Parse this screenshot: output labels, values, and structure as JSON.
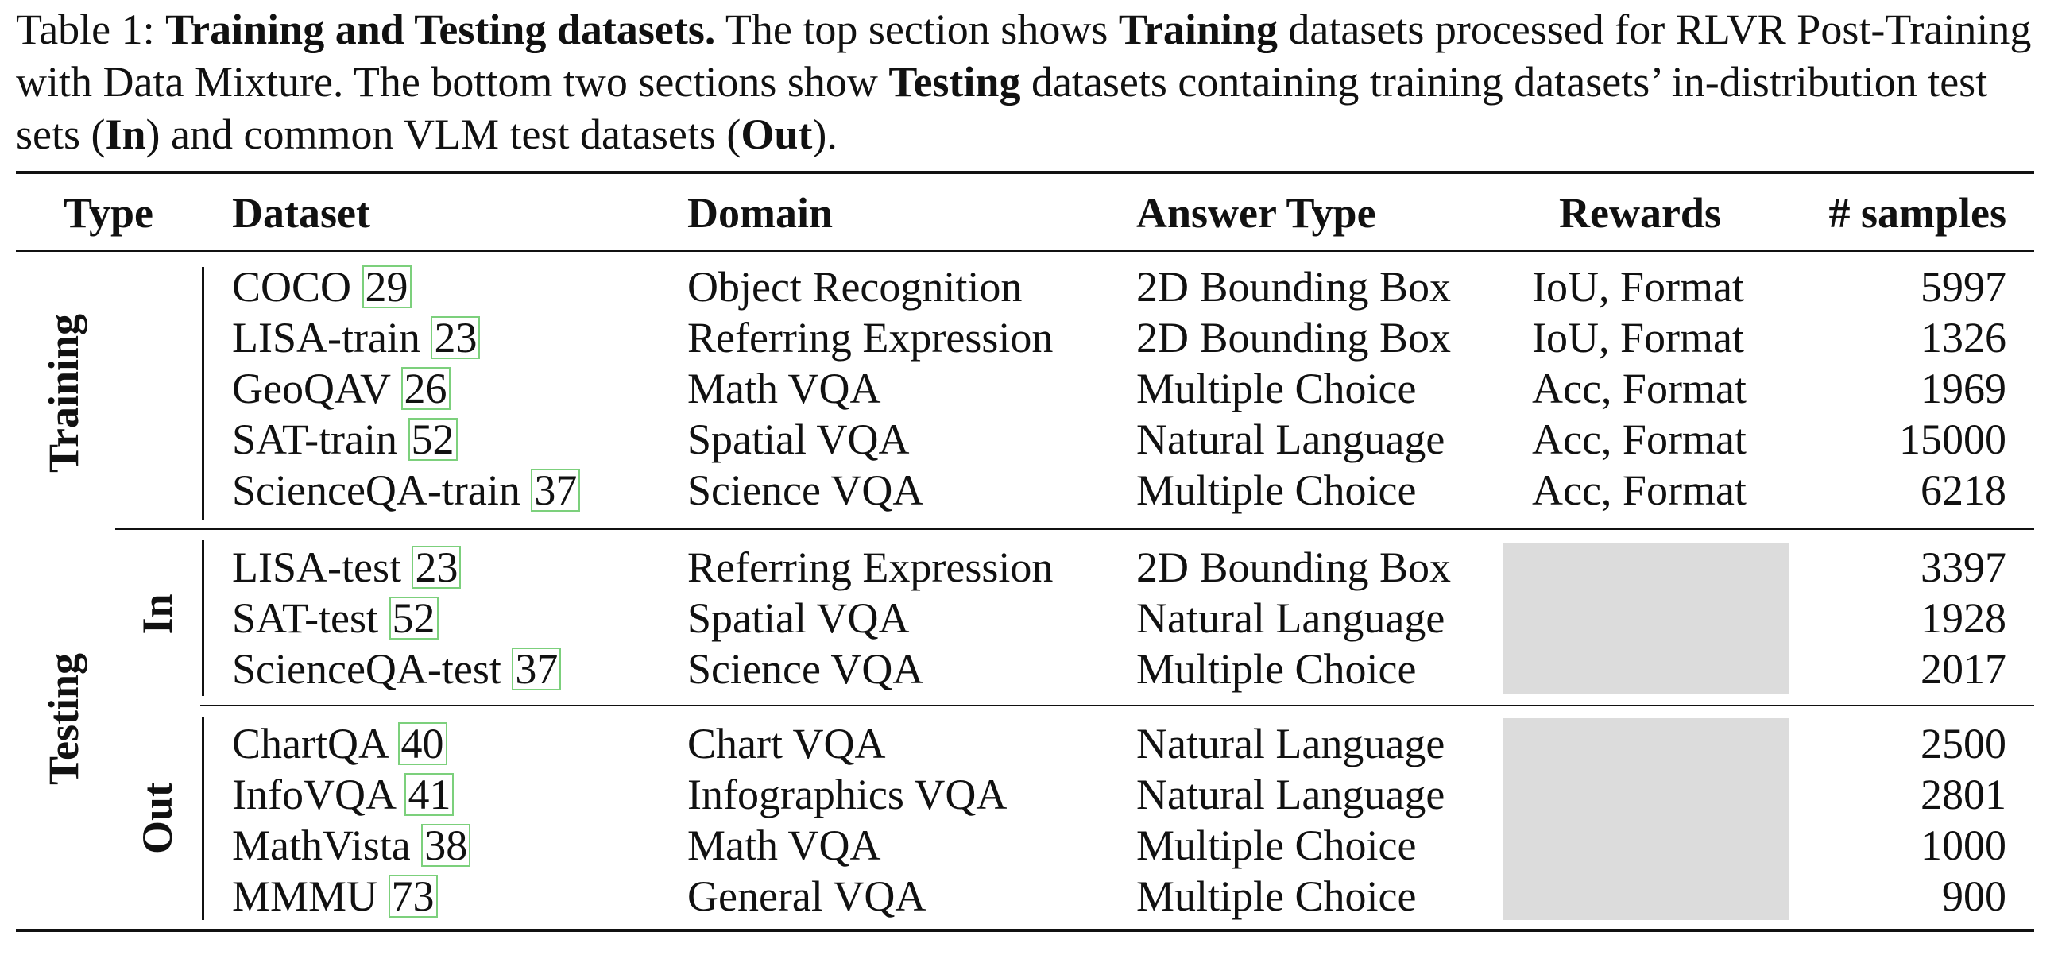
{
  "caption": {
    "label": "Table 1:",
    "title": "Training and Testing datasets.",
    "t1": "The top section shows",
    "b1": "Training",
    "t2": "datasets processed for RLVR Post-Training with Data Mixture. The bottom two sections show",
    "b2": "Testing",
    "t3": "datasets containing training datasets’ in-distribution test sets (",
    "b3": "In",
    "t4": ") and common VLM test datasets (",
    "b4": "Out",
    "t5": ")."
  },
  "headers": {
    "type": "Type",
    "dataset": "Dataset",
    "domain": "Domain",
    "answer_type": "Answer Type",
    "rewards": "Rewards",
    "samples": "# samples"
  },
  "groups": {
    "training": "Training",
    "testing": "Testing",
    "in": "In",
    "out": "Out"
  },
  "rows": [
    {
      "dataset": "COCO",
      "ref": "29",
      "domain": "Object Recognition",
      "answer": "2D Bounding Box",
      "rewards": "IoU, Format",
      "samples": "5997"
    },
    {
      "dataset": "LISA-train",
      "ref": "23",
      "domain": "Referring Expression",
      "answer": "2D Bounding Box",
      "rewards": "IoU, Format",
      "samples": "1326"
    },
    {
      "dataset": "GeoQAV",
      "ref": "26",
      "domain": "Math VQA",
      "answer": "Multiple Choice",
      "rewards": "Acc, Format",
      "samples": "1969"
    },
    {
      "dataset": "SAT-train",
      "ref": "52",
      "domain": "Spatial VQA",
      "answer": "Natural Language",
      "rewards": "Acc, Format",
      "samples": "15000"
    },
    {
      "dataset": "ScienceQA-train",
      "ref": "37",
      "domain": "Science VQA",
      "answer": "Multiple Choice",
      "rewards": "Acc, Format",
      "samples": "6218"
    },
    {
      "dataset": "LISA-test",
      "ref": "23",
      "domain": "Referring Expression",
      "answer": "2D Bounding Box",
      "rewards": "",
      "samples": "3397"
    },
    {
      "dataset": "SAT-test",
      "ref": "52",
      "domain": "Spatial VQA",
      "answer": "Natural Language",
      "rewards": "",
      "samples": "1928"
    },
    {
      "dataset": "ScienceQA-test",
      "ref": "37",
      "domain": "Science VQA",
      "answer": "Multiple Choice",
      "rewards": "",
      "samples": "2017"
    },
    {
      "dataset": "ChartQA",
      "ref": "40",
      "domain": "Chart VQA",
      "answer": "Natural Language",
      "rewards": "",
      "samples": "2500"
    },
    {
      "dataset": "InfoVQA",
      "ref": "41",
      "domain": "Infographics VQA",
      "answer": "Natural Language",
      "rewards": "",
      "samples": "2801"
    },
    {
      "dataset": "MathVista",
      "ref": "38",
      "domain": "Math VQA",
      "answer": "Multiple Choice",
      "rewards": "",
      "samples": "1000"
    },
    {
      "dataset": "MMMU",
      "ref": "73",
      "domain": "General VQA",
      "answer": "Multiple Choice",
      "rewards": "",
      "samples": "900"
    }
  ]
}
